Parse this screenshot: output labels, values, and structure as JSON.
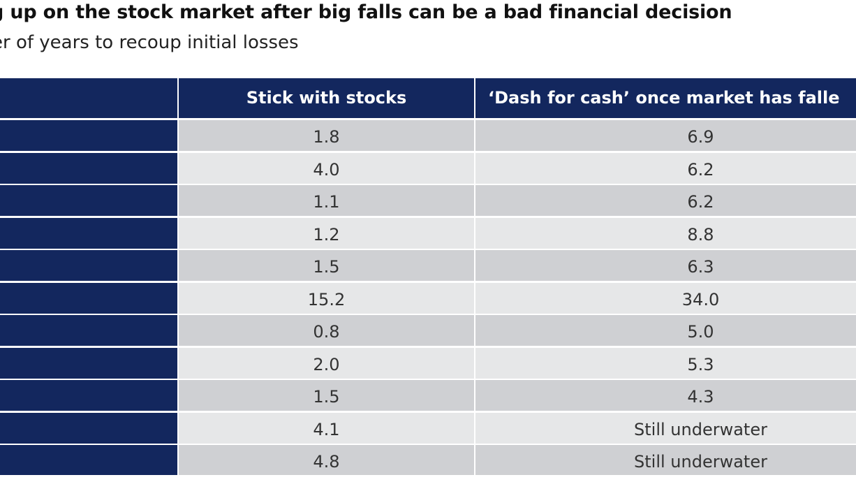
{
  "title": "g up on the stock market after big falls can be a bad financial decision",
  "subtitle": "er of years to recoup initial losses",
  "chart_data": {
    "type": "table",
    "columns": [
      "",
      "Stick with stocks",
      "‘Dash for cash’ once market has falle"
    ],
    "rows": [
      [
        "",
        "1.8",
        "6.9"
      ],
      [
        "",
        "4.0",
        "6.2"
      ],
      [
        "",
        "1.1",
        "6.2"
      ],
      [
        "",
        "1.2",
        "8.8"
      ],
      [
        "",
        "1.5",
        "6.3"
      ],
      [
        "",
        "15.2",
        "34.0"
      ],
      [
        "",
        "0.8",
        "5.0"
      ],
      [
        "",
        "2.0",
        "5.3"
      ],
      [
        "",
        "1.5",
        "4.3"
      ],
      [
        "",
        "4.1",
        "Still underwater"
      ],
      [
        "",
        "4.8",
        "Still underwater"
      ]
    ],
    "colors": {
      "header_bg": "#13275e",
      "header_text": "#ffffff",
      "row_dark": "#cfd0d3",
      "row_light": "#e6e7e8"
    }
  }
}
